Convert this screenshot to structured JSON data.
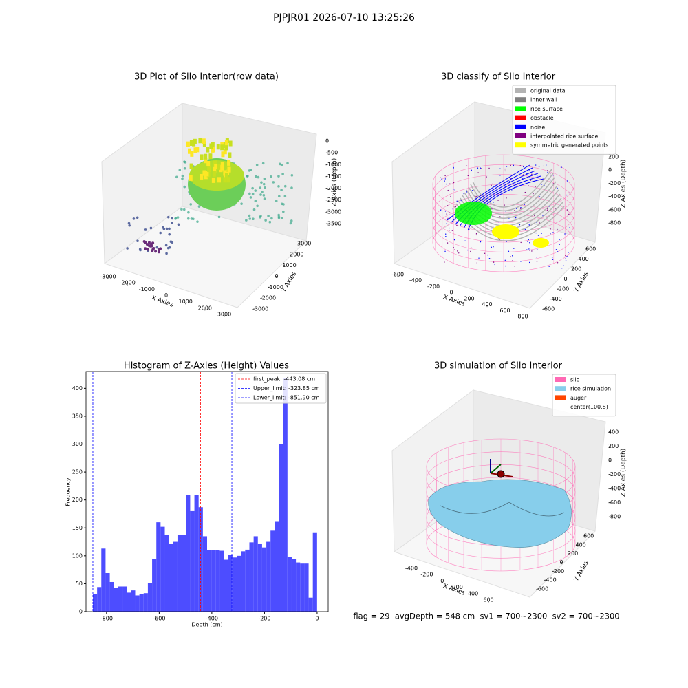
{
  "title": "PJPJR01 2026-07-10 13:25:26",
  "status": "flag = 29  avgDepth = 548 cm  sv1 = 700~2300  sv2 = 700~2300",
  "chart_data": [
    {
      "type": "scatter3d",
      "title": "3D Plot of Silo Interior(row data)",
      "xlabel": "X Axies",
      "ylabel": "Y Axies",
      "zlabel": "Z Axies (Depth)",
      "xticks": [
        -3000,
        -2000,
        -1000,
        0,
        1000,
        2000,
        3000
      ],
      "yticks": [
        -3000,
        -2000,
        -1000,
        0,
        1000,
        2000,
        3000
      ],
      "zticks": [
        0,
        -500,
        -1000,
        -1500,
        -2000,
        -2500,
        -3000,
        -3500
      ]
    },
    {
      "type": "scatter3d",
      "title": "3D classify of Silo Interior",
      "xlabel": "X Axies",
      "ylabel": "Y Axies",
      "zlabel": "Z Axies (Depth)",
      "xticks": [
        -600,
        -400,
        -200,
        0,
        200,
        400,
        600,
        800
      ],
      "yticks": [
        -600,
        -400,
        -200,
        0,
        200,
        400,
        600
      ],
      "zticks": [
        200,
        0,
        -200,
        -400,
        -600,
        -800
      ],
      "legend": [
        {
          "name": "original data",
          "color": "#b3b3b3"
        },
        {
          "name": "inner wall",
          "color": "#808080"
        },
        {
          "name": "rice surface",
          "color": "#00ff00"
        },
        {
          "name": "obstacle",
          "color": "#ff0000"
        },
        {
          "name": "noise",
          "color": "#0000ff"
        },
        {
          "name": "interpolated rice surface",
          "color": "#800080"
        },
        {
          "name": "symmetric generated points",
          "color": "#ffff00"
        }
      ]
    },
    {
      "type": "histogram",
      "title": "Histogram of Z-Axies (Height) Values",
      "xlabel": "Depth (cm)",
      "ylabel": "Frequency",
      "color": "#4d4dff",
      "xlim": [
        -878,
        42
      ],
      "ylim": [
        0,
        430
      ],
      "xticks": [
        -800,
        -600,
        -400,
        -200,
        0
      ],
      "yticks": [
        0,
        50,
        100,
        150,
        200,
        250,
        300,
        350,
        400
      ],
      "bins": [
        -851.9,
        -835.8,
        -819.8,
        -803.7,
        -787.6,
        -771.5,
        -755.5,
        -739.4,
        -723.3,
        -707.3,
        -691.2,
        -675.1,
        -659.0,
        -643.0,
        -626.9,
        -610.8,
        -594.8,
        -578.7,
        -562.6,
        -546.6,
        -530.5,
        -514.4,
        -498.4,
        -482.3,
        -466.2,
        -450.2,
        -434.1,
        -418.0,
        -402.0,
        -385.9,
        -369.8,
        -353.7,
        -337.7,
        -321.6,
        -305.5,
        -289.5,
        -273.4,
        -257.3,
        -241.2,
        -225.2,
        -209.1,
        -193.0,
        -177.0,
        -160.9,
        -144.8,
        -128.8,
        -112.7,
        -96.6,
        -80.6,
        -64.5,
        -48.4,
        -32.3,
        -16.3,
        -0.2
      ],
      "counts": [
        31,
        44,
        113,
        69,
        53,
        43,
        45,
        45,
        34,
        38,
        29,
        32,
        33,
        51,
        94,
        160,
        152,
        137,
        122,
        125,
        138,
        138,
        209,
        180,
        209,
        187,
        135,
        110,
        110,
        110,
        109,
        93,
        101,
        97,
        100,
        108,
        111,
        124,
        135,
        122,
        115,
        125,
        145,
        162,
        300,
        418,
        98,
        94,
        88,
        86,
        86,
        25,
        142
      ],
      "lines": [
        {
          "name": "first_peak: -443.08 cm",
          "value": -443.08,
          "color": "#ff0000"
        },
        {
          "name": "Upper_limit: -323.85 cm",
          "value": -323.85,
          "color": "#0000ff"
        },
        {
          "name": "Lower_limit: -851.90 cm",
          "value": -851.9,
          "color": "#0000ff"
        }
      ]
    },
    {
      "type": "scatter3d",
      "title": "3D simulation of Silo Interior",
      "xlabel": "X Axies",
      "ylabel": "Y Axies",
      "zlabel": "Z Axies (Depth)",
      "xticks": [
        -400,
        -200,
        0,
        200,
        400,
        600
      ],
      "yticks": [
        -600,
        -400,
        -200,
        0,
        200,
        400,
        600
      ],
      "zticks": [
        400,
        200,
        0,
        -200,
        -400,
        -600,
        -800
      ],
      "legend": [
        {
          "name": "silo",
          "color": "#ff69b4"
        },
        {
          "name": "rice simulation",
          "color": "#87ceeb"
        },
        {
          "name": "auger",
          "color": "#ff4500"
        },
        {
          "name": "center(100,8)",
          "color": "#ffffff"
        }
      ]
    }
  ]
}
